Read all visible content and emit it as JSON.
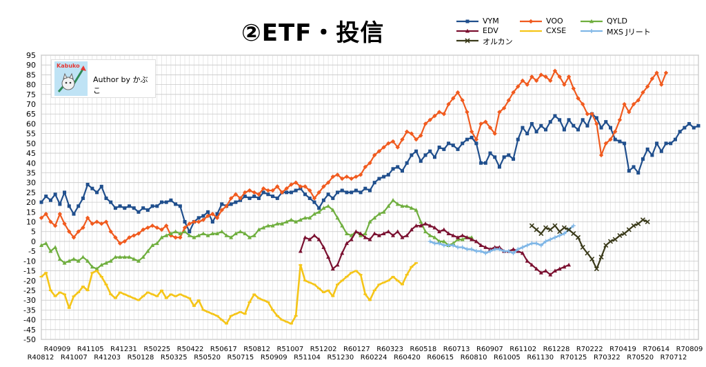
{
  "title": "②ETF・投信",
  "author": "Author by かぶこ",
  "logo_text": "Kabuko",
  "chart_data": {
    "type": "line",
    "ylim": [
      -50,
      95
    ],
    "ytick_step": 5,
    "grid": true,
    "legend_position": "top-right",
    "x_top_labels": [
      "R40909",
      "R41105",
      "R41231",
      "R50225",
      "R50422",
      "R50617",
      "R50812",
      "R51007",
      "R51202",
      "R60127",
      "R60323",
      "R60518",
      "R60713",
      "R60907",
      "R61102",
      "R61228",
      "R70222",
      "R70419",
      "R70614",
      "R70809"
    ],
    "x_bottom_labels": [
      "R40812",
      "R41007",
      "R41203",
      "R50128",
      "R50325",
      "R50520",
      "R50715",
      "R50909",
      "R51104",
      "R51230",
      "R60224",
      "R60420",
      "R60615",
      "R60810",
      "R61005",
      "R61130",
      "R70125",
      "R70322",
      "R70520",
      "R70712"
    ],
    "series": [
      {
        "name": "VYM",
        "color": "#1F4E8C",
        "marker": "square",
        "start": 0,
        "values": [
          20,
          23,
          21,
          24,
          19,
          25,
          18,
          14,
          18,
          22,
          29,
          27,
          25,
          28,
          22,
          20,
          17,
          18,
          17,
          18,
          17,
          15,
          17,
          16,
          18,
          18,
          20,
          20,
          21,
          19,
          18,
          10,
          5,
          10,
          12,
          13,
          15,
          10,
          14,
          19,
          18,
          19,
          20,
          21,
          23,
          22,
          23,
          22,
          25,
          24,
          23,
          22,
          25,
          25,
          25,
          26,
          27,
          24,
          22,
          20,
          17,
          21,
          24,
          22,
          25,
          26,
          25,
          25,
          26,
          25,
          27,
          26,
          30,
          32,
          33,
          34,
          37,
          38,
          36,
          40,
          44,
          46,
          41,
          44,
          46,
          43,
          48,
          47,
          50,
          49,
          47,
          50,
          52,
          53,
          50,
          40,
          40,
          45,
          43,
          38,
          43,
          44,
          42,
          52,
          58,
          55,
          60,
          56,
          59,
          57,
          61,
          64,
          62,
          57,
          62,
          59,
          57,
          62,
          59,
          65,
          63,
          58,
          61,
          58,
          52,
          51,
          50,
          36,
          38,
          35,
          42,
          47,
          44,
          50,
          46,
          50,
          50,
          52,
          56,
          58,
          60,
          58,
          59
        ]
      },
      {
        "name": "VOO",
        "color": "#F05A1E",
        "marker": "diamond",
        "start": 0,
        "values": [
          12,
          14,
          10,
          8,
          14,
          9,
          5,
          2,
          5,
          7,
          12,
          9,
          10,
          9,
          10,
          5,
          2,
          -1,
          0,
          2,
          3,
          4,
          6,
          7,
          8,
          7,
          6,
          8,
          3,
          2,
          2,
          7,
          9,
          10,
          10,
          11,
          13,
          14,
          12,
          16,
          18,
          22,
          24,
          22,
          25,
          26,
          25,
          24,
          27,
          26,
          26,
          28,
          25,
          27,
          29,
          30,
          28,
          28,
          26,
          22,
          25,
          28,
          30,
          33,
          34,
          32,
          33,
          32,
          33,
          34,
          38,
          40,
          44,
          46,
          48,
          50,
          51,
          48,
          52,
          56,
          55,
          52,
          54,
          60,
          62,
          64,
          66,
          65,
          70,
          73,
          76,
          72,
          66,
          56,
          52,
          60,
          61,
          58,
          55,
          66,
          68,
          72,
          76,
          79,
          82,
          80,
          84,
          82,
          85,
          84,
          82,
          87,
          84,
          80,
          84,
          78,
          73,
          70,
          65,
          65,
          60,
          44,
          50,
          52,
          56,
          62,
          70,
          66,
          70,
          72,
          76,
          79,
          83,
          86,
          80,
          86
        ]
      },
      {
        "name": "QYLD",
        "color": "#6FAE3E",
        "marker": "triangle",
        "start": 0,
        "values": [
          -2,
          -1,
          -5,
          -3,
          -9,
          -11,
          -10,
          -9,
          -10,
          -8,
          -10,
          -13,
          -14,
          -12,
          -11,
          -10,
          -8,
          -8,
          -8,
          -8,
          -9,
          -10,
          -8,
          -5,
          -2,
          -1,
          2,
          3,
          4,
          5,
          4,
          5,
          3,
          2,
          3,
          4,
          3,
          4,
          4,
          5,
          3,
          2,
          4,
          5,
          4,
          2,
          3,
          6,
          7,
          8,
          8,
          9,
          9,
          10,
          11,
          10,
          11,
          12,
          12,
          14,
          15,
          17,
          18,
          16,
          12,
          8,
          4,
          3,
          5,
          3,
          4,
          10,
          12,
          14,
          15,
          18,
          21,
          19,
          18,
          18,
          17,
          16,
          10,
          5,
          3,
          2,
          0,
          0,
          -2,
          -1,
          1,
          1,
          2,
          2
        ]
      },
      {
        "name": "EDV",
        "color": "#7A1030",
        "marker": "triangle",
        "start": 56,
        "values": [
          -5,
          2,
          1,
          3,
          1,
          -3,
          -8,
          -14,
          -12,
          -6,
          -1,
          1,
          5,
          4,
          2,
          1,
          4,
          3,
          4,
          5,
          3,
          5,
          2,
          3,
          6,
          8,
          8,
          9,
          8,
          7,
          5,
          6,
          4,
          3,
          2,
          3,
          2,
          1,
          0,
          -2,
          -3,
          -4,
          -3,
          -3,
          -5,
          -5,
          -4,
          -5,
          -6,
          -10,
          -12,
          -14,
          -16,
          -15,
          -17,
          -15,
          -14,
          -13,
          -12
        ]
      },
      {
        "name": "CXSE",
        "color": "#F5C518",
        "marker": "dash",
        "start": 0,
        "values": [
          -18,
          -16,
          -25,
          -28,
          -26,
          -27,
          -34,
          -28,
          -26,
          -23,
          -25,
          -16,
          -15,
          -18,
          -22,
          -27,
          -29,
          -26,
          -27,
          -28,
          -29,
          -30,
          -28,
          -26,
          -27,
          -28,
          -25,
          -29,
          -27,
          -28,
          -27,
          -28,
          -29,
          -33,
          -30,
          -35,
          -36,
          -37,
          -38,
          -40,
          -42,
          -38,
          -37,
          -36,
          -37,
          -31,
          -27,
          -29,
          -30,
          -31,
          -35,
          -38,
          -40,
          -41,
          -42,
          -38,
          -12,
          -20,
          -21,
          -22,
          -24,
          -26,
          -25,
          -28,
          -22,
          -20,
          -18,
          -16,
          -15,
          -17,
          -27,
          -30,
          -25,
          -22,
          -21,
          -20,
          -18,
          -20,
          -22,
          -17,
          -13,
          -11
        ]
      },
      {
        "name": "MXS Jリート",
        "color": "#7FB6E6",
        "marker": "plus",
        "start": 84,
        "values": [
          0,
          -1,
          -1,
          -2,
          -2,
          -2,
          -3,
          -3,
          -4,
          -4,
          -5,
          -5,
          -6,
          -5,
          -4,
          -4,
          -5,
          -5,
          -6,
          -4,
          -3,
          -2,
          -1,
          -1,
          -2,
          0,
          1,
          2,
          3,
          4,
          6,
          8
        ]
      },
      {
        "name": "オルカン",
        "color": "#3A3A1A",
        "marker": "cross",
        "start": 106,
        "values": [
          8,
          6,
          4,
          7,
          6,
          8,
          5,
          7,
          6,
          4,
          2,
          -3,
          -6,
          -9,
          -14,
          -8,
          -2,
          0,
          1,
          3,
          4,
          6,
          8,
          9,
          11,
          10
        ]
      }
    ]
  }
}
